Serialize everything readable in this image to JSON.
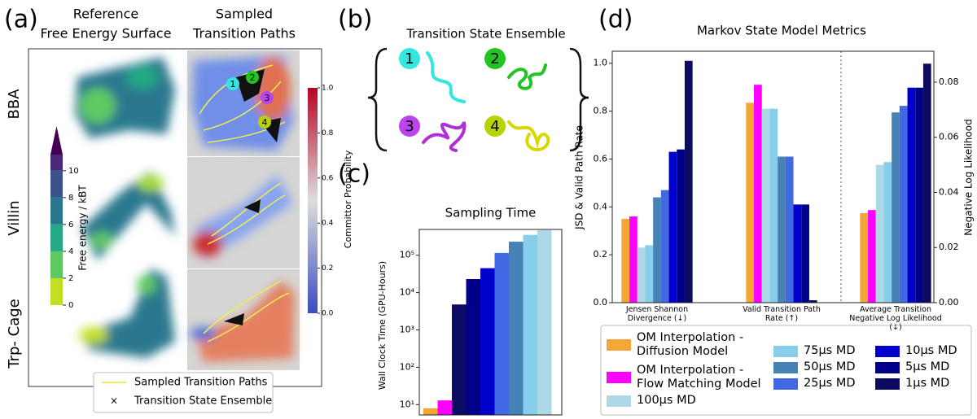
{
  "panel_labels": [
    "(a)",
    "(b)",
    "(c)",
    "(d)"
  ],
  "states": [
    {
      "label": "1",
      "color": "#33e6e0"
    },
    {
      "label": "2",
      "color": "#22c422"
    },
    {
      "label": "3",
      "color": "#bb44ee"
    },
    {
      "label": "4",
      "color": "#b8d400"
    }
  ],
  "panel_a": {
    "column_titles": [
      [
        "Reference",
        "Free Energy Surface"
      ],
      [
        "Sampled",
        "Transition Paths"
      ]
    ],
    "row_labels": [
      "BBA",
      "Villin",
      "Trp- Cage"
    ],
    "free_energy_colorbar": {
      "label": "Free energy / kBT",
      "lim": [
        0,
        11.2
      ],
      "ticks": [
        0,
        2,
        4,
        6,
        8,
        10
      ],
      "colors": [
        "#c2df23",
        "#5ec962",
        "#23a983",
        "#2a788e",
        "#3b528b",
        "#482878"
      ],
      "extend_color": "#440154"
    },
    "committor_colorbar": {
      "label": "Committor Probability",
      "lim": [
        0,
        1
      ],
      "ticks": [
        {
          "value": 0,
          "label": "0.0"
        },
        {
          "value": 0.2,
          "label": "0.2"
        },
        {
          "value": 0.4,
          "label": "0.4"
        },
        {
          "value": 0.6,
          "label": "0.6"
        },
        {
          "value": 0.8,
          "label": "0.8"
        },
        {
          "value": 1,
          "label": "1.0"
        }
      ]
    },
    "legend": [
      "Sampled Transition Paths",
      "Transition State Ensemble"
    ]
  },
  "panel_b": {
    "title": "Transition State Ensemble"
  },
  "chart_data": [
    {
      "type": "bar",
      "title": "Sampling Time",
      "y_label": "Wall Clock Time (GPU-Hours)",
      "log_y": true,
      "values": [
        8,
        13,
        4800,
        23000,
        45000,
        115000,
        230000,
        350000,
        470000
      ],
      "colors": [
        "#f4a636",
        "#ff00ff",
        "#0b0b62",
        "#00008b",
        "#0000cd",
        "#4169e1",
        "#4682b4",
        "#87ceeb",
        "#add8e6"
      ],
      "ylim": [
        5.3,
        490000
      ],
      "yticks": [
        {
          "value": 10,
          "label": "10¹"
        },
        {
          "value": 100,
          "label": "10²"
        },
        {
          "value": 1000,
          "label": "10³"
        },
        {
          "value": 10000,
          "label": "10⁴"
        },
        {
          "value": 100000,
          "label": "10⁵"
        }
      ]
    },
    {
      "type": "grouped_bar",
      "title": "Markov State Model Metrics",
      "categories": [
        "Jensen Shannon Divergence (↓)",
        "Valid Transition Path Rate (↑)",
        "Average Transition Negative Log Likelihood (↓)"
      ],
      "category_axes": [
        "y",
        "y",
        "y2"
      ],
      "y_label": "JSD & Valid Path Rate",
      "y2_label": "Negative Log Likelihood",
      "ylim": [
        0,
        1.05
      ],
      "yticks": [
        {
          "value": 0,
          "label": "0.0"
        },
        {
          "value": 0.2,
          "label": "0.2"
        },
        {
          "value": 0.4,
          "label": "0.4"
        },
        {
          "value": 0.6,
          "label": "0.6"
        },
        {
          "value": 0.8,
          "label": "0.8"
        },
        {
          "value": 1,
          "label": "1.0"
        }
      ],
      "y2lim": [
        0,
        0.0912
      ],
      "y2ticks": [
        {
          "value": 0,
          "label": "0.00"
        },
        {
          "value": 0.02,
          "label": "0.02"
        },
        {
          "value": 0.04,
          "label": "0.04"
        },
        {
          "value": 0.06,
          "label": "0.06"
        },
        {
          "value": 0.08,
          "label": "0.08"
        }
      ],
      "series": [
        {
          "name": "OM Interpolation - Diffusion Model",
          "color": "#f4a636",
          "values": [
            0.35,
            0.835,
            0.0325
          ]
        },
        {
          "name": "OM Interpolation - Flow Matching Model",
          "color": "#ff00ff",
          "values": [
            0.36,
            0.91,
            0.0336
          ]
        },
        {
          "name": "100µs MD",
          "color": "#add8e6",
          "values": [
            0.23,
            0.81,
            0.05
          ]
        },
        {
          "name": "75µs MD",
          "color": "#87ceeb",
          "values": [
            0.24,
            0.81,
            0.051
          ]
        },
        {
          "name": "50µs MD",
          "color": "#4682b4",
          "values": [
            0.44,
            0.61,
            0.069
          ]
        },
        {
          "name": "25µs MD",
          "color": "#4169e1",
          "values": [
            0.47,
            0.61,
            0.0714
          ]
        },
        {
          "name": "10µs MD",
          "color": "#0000cd",
          "values": [
            0.63,
            0.41,
            0.078
          ]
        },
        {
          "name": "5µs MD",
          "color": "#00008b",
          "values": [
            0.64,
            0.41,
            0.078
          ]
        },
        {
          "name": "1µs MD",
          "color": "#0b0b62",
          "values": [
            1.01,
            0.01,
            0.0867
          ]
        }
      ]
    }
  ]
}
